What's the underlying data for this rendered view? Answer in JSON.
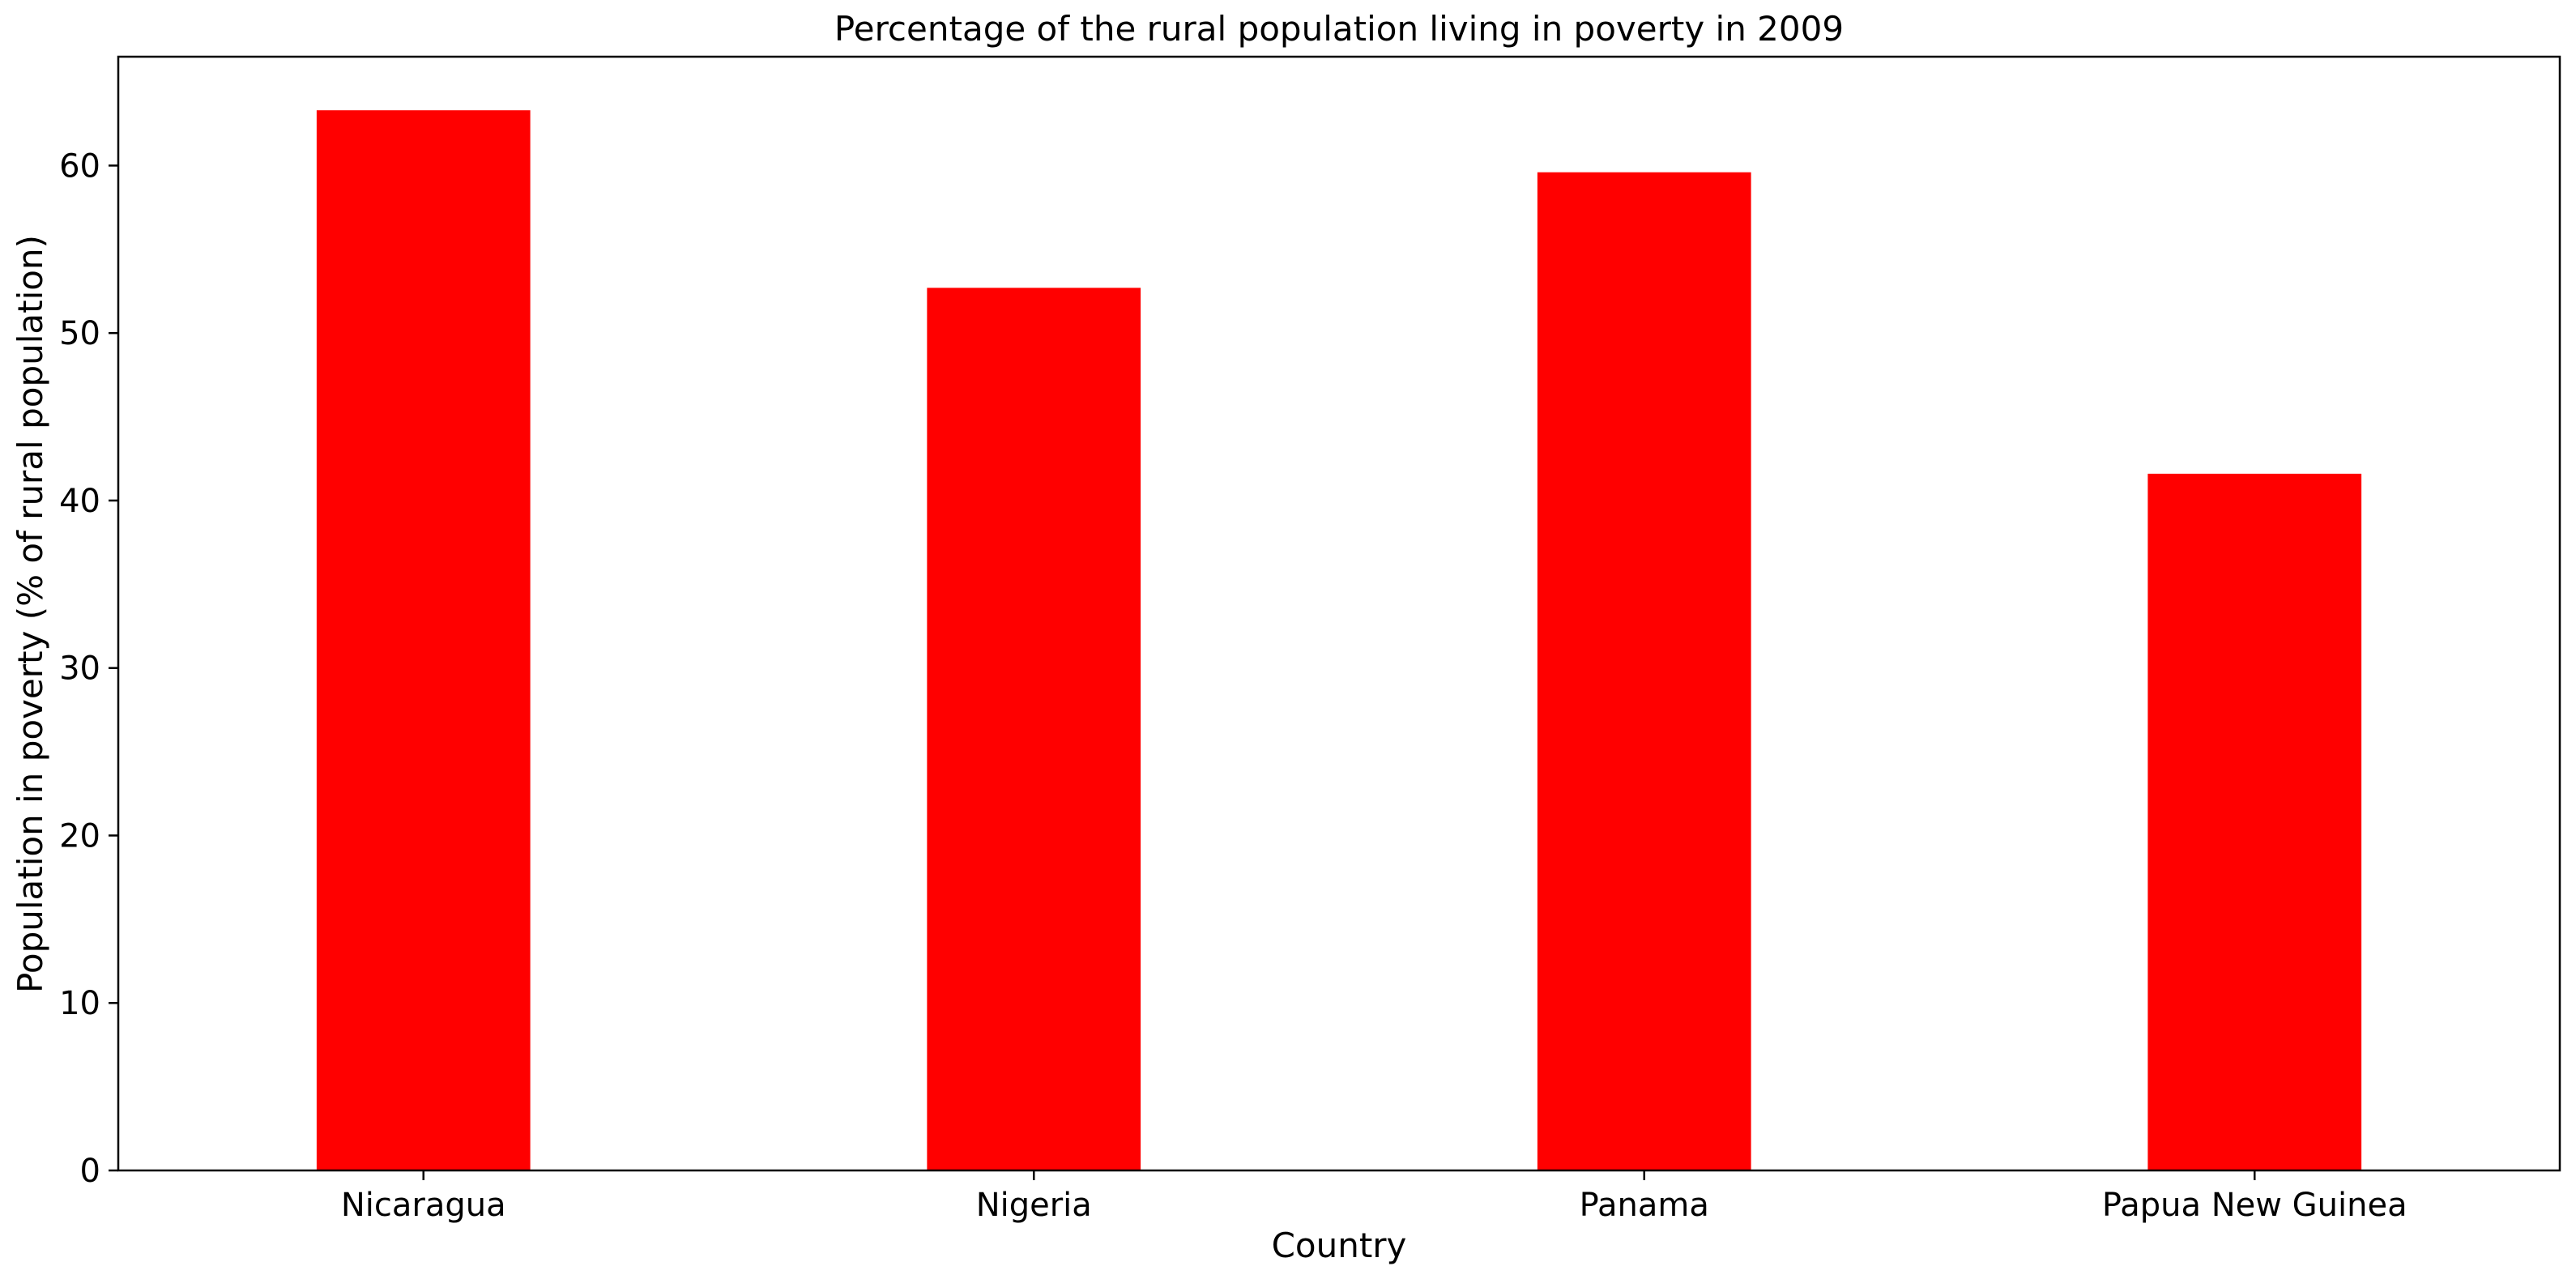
{
  "chart_data": {
    "type": "bar",
    "title": "Percentage of the rural population living in poverty in 2009",
    "xlabel": "Country",
    "ylabel": "Population in poverty (% of rural population)",
    "categories": [
      "Nicaragua",
      "Nigeria",
      "Panama",
      "Papua New Guinea"
    ],
    "values": [
      63.3,
      52.7,
      59.6,
      41.6
    ],
    "ylim": [
      0,
      66.5
    ],
    "yticks": [
      0,
      10,
      20,
      30,
      40,
      50,
      60
    ],
    "bar_color": "#ff0000",
    "grid": false,
    "legend": "none"
  }
}
